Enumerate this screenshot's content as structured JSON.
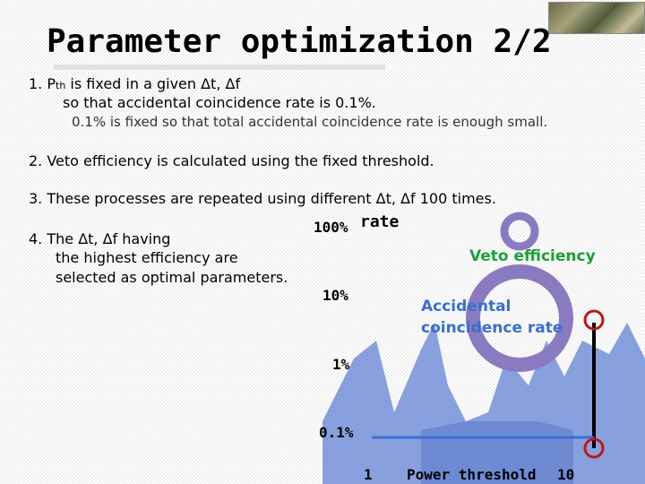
{
  "slide": {
    "title": "Parameter optimization 2/2",
    "steps": {
      "s1_num": "1.",
      "s1_p": "P",
      "s1_sub": "th",
      "s1_text": " is fixed in a given  Δt, Δf",
      "s1_line2": "so that accidental coincidence rate is 0.1%.",
      "s1_line3": "0.1% is fixed so that total accidental coincidence rate is enough small.",
      "s2": "2. Veto efficiency is calculated using the fixed threshold.",
      "s3": "3. These processes are repeated using different Δt, Δf 100 times.",
      "s4_line1": "4. The Δt, Δf having",
      "s4_line2": "the highest efficiency are",
      "s4_line3": "selected as optimal parameters."
    }
  },
  "chart": {
    "y_label": "rate",
    "y_ticks": [
      "100%",
      "10%",
      "1%",
      "0.1%"
    ],
    "x_ticks": [
      "1",
      "10"
    ],
    "x_label": "Power threshold",
    "legend_veto": "Veto efficiency",
    "legend_accidental_1": "Accidental",
    "legend_accidental_2": "coincidence rate",
    "colors": {
      "veto": "#1e9e3a",
      "accidental": "#3b6fd0",
      "blue_shape": "#6f8fd8",
      "purple_ring": "#8a7bc0",
      "marker": "#c0161b"
    }
  }
}
